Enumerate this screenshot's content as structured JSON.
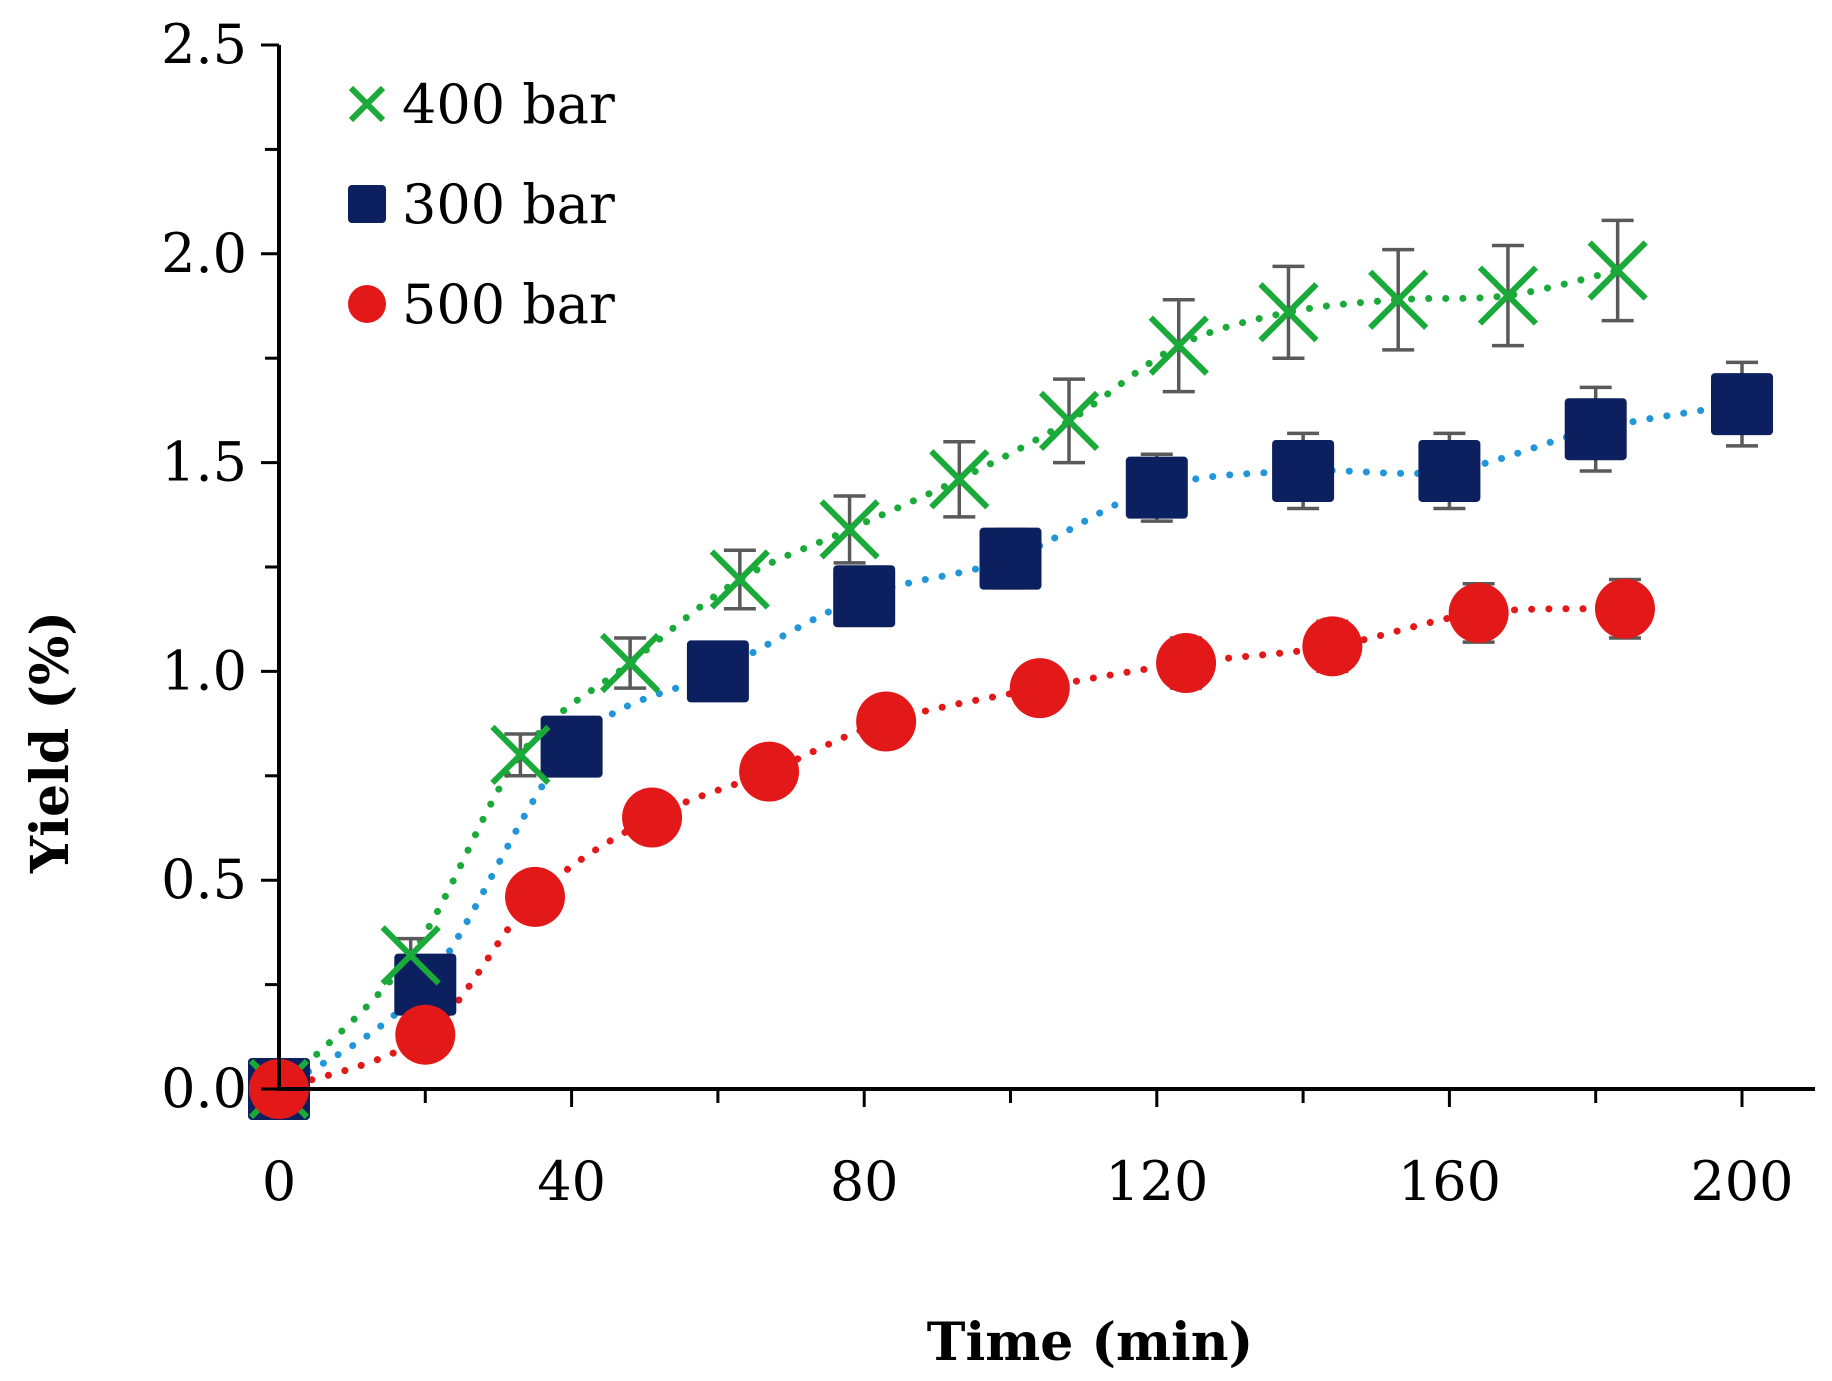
{
  "chart_data": {
    "type": "scatter",
    "title": "",
    "xlabel": "Time (min)",
    "ylabel": "Yield  (%)",
    "xlim": [
      0,
      200
    ],
    "ylim": [
      0,
      2.5
    ],
    "x_ticks": [
      0,
      40,
      80,
      120,
      160,
      200
    ],
    "x_tick_labels": [
      "0",
      "40",
      "80",
      "120",
      "160",
      "200"
    ],
    "y_ticks": [
      0,
      0.5,
      1.0,
      1.5,
      2.0,
      2.5
    ],
    "y_tick_labels": [
      "0.0",
      "0.5",
      "1.0",
      "1.5",
      "2.0",
      "2.5"
    ],
    "grid": false,
    "legend_position": "top-left",
    "series": [
      {
        "name": "400 bar",
        "marker": "x",
        "color": "#1aaa3a",
        "trend_color": "#1aaa3a",
        "x": [
          0,
          18,
          33,
          48,
          63,
          78,
          93,
          108,
          123,
          138,
          153,
          168,
          183
        ],
        "y": [
          0,
          0.32,
          0.8,
          1.02,
          1.22,
          1.34,
          1.46,
          1.6,
          1.78,
          1.86,
          1.89,
          1.9,
          1.96
        ],
        "error": [
          0,
          0.04,
          0.05,
          0.06,
          0.07,
          0.08,
          0.09,
          0.1,
          0.11,
          0.11,
          0.12,
          0.12,
          0.12
        ]
      },
      {
        "name": "300 bar",
        "marker": "square",
        "color": "#0c1f5e",
        "trend_color": "#2196d8",
        "x": [
          0,
          20,
          40,
          60,
          80,
          100,
          120,
          140,
          160,
          180,
          200
        ],
        "y": [
          0,
          0.25,
          0.82,
          1.0,
          1.18,
          1.27,
          1.44,
          1.48,
          1.48,
          1.58,
          1.64
        ],
        "error": [
          0,
          0.03,
          0.04,
          0.05,
          0.06,
          0.07,
          0.08,
          0.09,
          0.09,
          0.1,
          0.1
        ]
      },
      {
        "name": "500 bar",
        "marker": "circle",
        "color": "#e31818",
        "trend_color": "#e31818",
        "x": [
          0,
          20,
          35,
          51,
          67,
          83,
          104,
          124,
          144,
          164,
          184
        ],
        "y": [
          0,
          0.13,
          0.46,
          0.65,
          0.76,
          0.88,
          0.96,
          1.02,
          1.06,
          1.14,
          1.15
        ],
        "error": [
          0,
          0.02,
          0.03,
          0.03,
          0.04,
          0.04,
          0.05,
          0.06,
          0.06,
          0.07,
          0.07
        ]
      }
    ]
  }
}
